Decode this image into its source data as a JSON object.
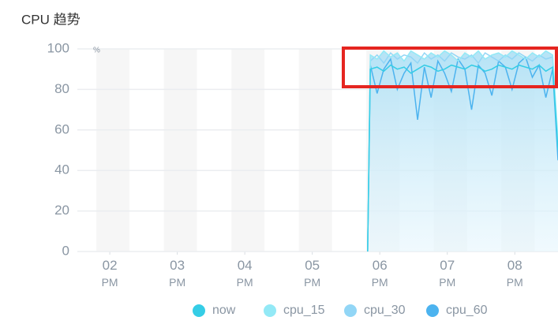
{
  "chart_data": {
    "type": "line",
    "title": "CPU 趋势",
    "y_unit": "%",
    "x": [
      17.82,
      17.86,
      17.96,
      18.06,
      18.16,
      18.26,
      18.36,
      18.46,
      18.56,
      18.66,
      18.76,
      18.86,
      18.96,
      19.06,
      19.16,
      19.26,
      19.36,
      19.46,
      19.56,
      19.66,
      19.76,
      19.86,
      19.96,
      20.06,
      20.16,
      20.26,
      20.36,
      20.46,
      20.56,
      20.64
    ],
    "series": [
      {
        "name": "now",
        "color": "#35cde6",
        "values": [
          0,
          90,
          91,
          89,
          92,
          90,
          91,
          88,
          90,
          92,
          91,
          89,
          90,
          92,
          91,
          90,
          92,
          91,
          89,
          90,
          92,
          91,
          90,
          92,
          91,
          90,
          92,
          89,
          91,
          50
        ]
      },
      {
        "name": "cpu_15",
        "color": "#93e9f6",
        "values": [
          0,
          97,
          95,
          99,
          96,
          98,
          94,
          99,
          97,
          95,
          98,
          96,
          99,
          97,
          94,
          98,
          96,
          99,
          95,
          97,
          98,
          96,
          99,
          97,
          95,
          98,
          96,
          99,
          97,
          55
        ]
      },
      {
        "name": "cpu_30",
        "color": "#92d6f6",
        "values": [
          0,
          94,
          97,
          93,
          98,
          95,
          97,
          96,
          93,
          98,
          95,
          97,
          94,
          98,
          96,
          95,
          97,
          93,
          98,
          96,
          94,
          97,
          95,
          98,
          96,
          94,
          97,
          95,
          96,
          52
        ]
      },
      {
        "name": "cpu_60",
        "color": "#4cb3ef",
        "values": [
          0,
          92,
          78,
          90,
          95,
          80,
          88,
          93,
          65,
          91,
          76,
          94,
          88,
          79,
          95,
          90,
          70,
          92,
          88,
          77,
          94,
          91,
          80,
          93,
          96,
          86,
          92,
          76,
          90,
          45
        ]
      }
    ],
    "area": true,
    "xlim": [
      13.8,
      20.64
    ],
    "xticks": [
      {
        "value": 14,
        "label": "02 PM"
      },
      {
        "value": 15,
        "label": "03 PM"
      },
      {
        "value": 16,
        "label": "04 PM"
      },
      {
        "value": 17,
        "label": "05 PM"
      },
      {
        "value": 18,
        "label": "06 PM"
      },
      {
        "value": 19,
        "label": "07 PM"
      },
      {
        "value": 20,
        "label": "08 PM"
      }
    ],
    "ylim": [
      0,
      100
    ],
    "yticks": [
      0,
      20,
      40,
      60,
      80,
      100
    ],
    "grid": true
  }
}
